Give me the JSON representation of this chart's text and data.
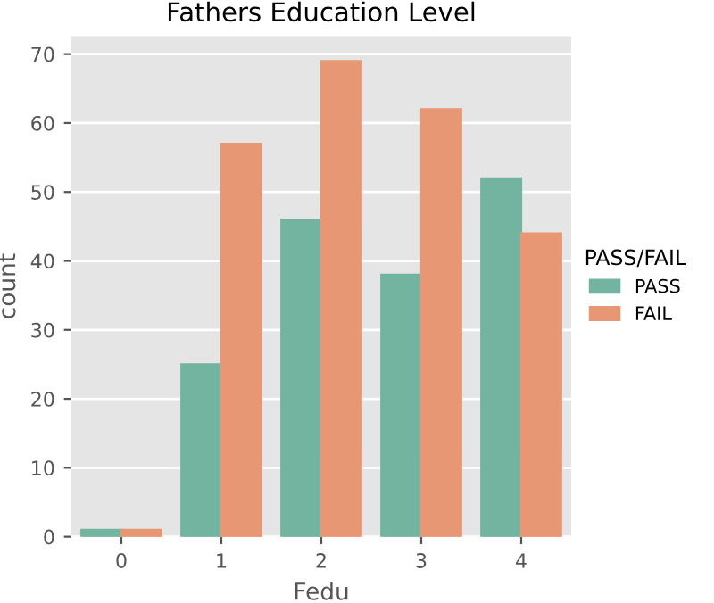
{
  "chart_data": {
    "type": "bar",
    "title": "Fathers Education Level",
    "xlabel": "Fedu",
    "ylabel": "count",
    "legend_title": "PASS/FAIL",
    "categories": [
      "0",
      "1",
      "2",
      "3",
      "4"
    ],
    "series": [
      {
        "name": "PASS",
        "color": "#73b4a0",
        "values": [
          1,
          25,
          46,
          38,
          52
        ]
      },
      {
        "name": "FAIL",
        "color": "#e89775",
        "values": [
          1,
          57,
          69,
          62,
          44
        ]
      }
    ],
    "ylim": [
      0,
      72.6
    ],
    "yticks": [
      0,
      10,
      20,
      30,
      40,
      50,
      60,
      70
    ],
    "grid": "y",
    "legend": "right"
  }
}
